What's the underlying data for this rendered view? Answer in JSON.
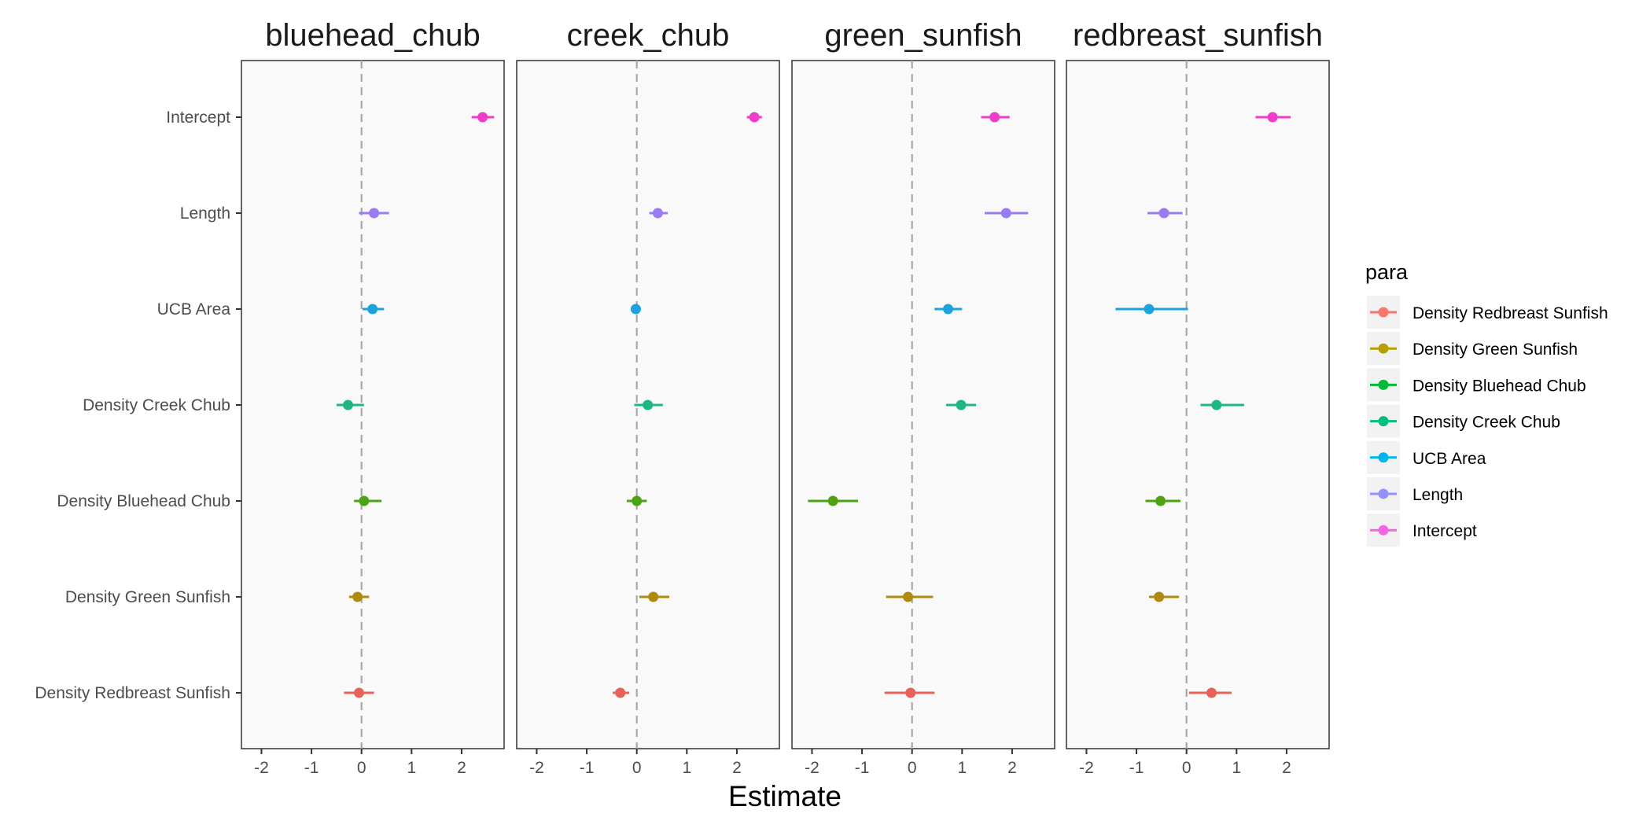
{
  "chart_data": {
    "type": "scatter",
    "subtype": "coefficient-plot-faceted",
    "xlabel": "Estimate",
    "xlim": [
      -2.4,
      2.85
    ],
    "xticks": [
      -2,
      -1,
      0,
      1,
      2
    ],
    "reference_line": {
      "x": 0,
      "style": "dashed"
    },
    "panel_background": "#f9f9f9",
    "grid": false,
    "y_categories": [
      "Intercept",
      "Length",
      "UCB Area",
      "Density Creek Chub",
      "Density Bluehead Chub",
      "Density Green Sunfish",
      "Density Redbreast Sunfish"
    ],
    "legend": {
      "title": "para",
      "position": "right",
      "entries": [
        {
          "label": "Density Redbreast Sunfish",
          "color": "#F8766D"
        },
        {
          "label": "Density Green Sunfish",
          "color": "#B79F00"
        },
        {
          "label": "Density Bluehead Chub",
          "color": "#00BA38"
        },
        {
          "label": "Density Creek Chub",
          "color": "#00BF7D"
        },
        {
          "label": "UCB Area",
          "color": "#00B4EF"
        },
        {
          "label": "Length",
          "color": "#9590FF"
        },
        {
          "label": "Intercept",
          "color": "#F564E3"
        }
      ]
    },
    "series_colors": {
      "Density Redbreast Sunfish": "#E8625C",
      "Density Green Sunfish": "#B08A0E",
      "Density Bluehead Chub": "#4CA414",
      "Density Creek Chub": "#1EB682",
      "UCB Area": "#1CA3DE",
      "Length": "#9A7CF2",
      "Intercept": "#EE3DCB"
    },
    "panels": [
      {
        "name": "bluehead_chub",
        "points": [
          {
            "param": "Intercept",
            "estimate": 2.42,
            "lower": 2.2,
            "upper": 2.65
          },
          {
            "param": "Length",
            "estimate": 0.25,
            "lower": -0.05,
            "upper": 0.55
          },
          {
            "param": "UCB Area",
            "estimate": 0.22,
            "lower": 0.02,
            "upper": 0.45
          },
          {
            "param": "Density Creek Chub",
            "estimate": -0.27,
            "lower": -0.5,
            "upper": 0.05
          },
          {
            "param": "Density Bluehead Chub",
            "estimate": 0.05,
            "lower": -0.15,
            "upper": 0.4
          },
          {
            "param": "Density Green Sunfish",
            "estimate": -0.08,
            "lower": -0.25,
            "upper": 0.15
          },
          {
            "param": "Density Redbreast Sunfish",
            "estimate": -0.05,
            "lower": -0.35,
            "upper": 0.25
          }
        ]
      },
      {
        "name": "creek_chub",
        "points": [
          {
            "param": "Intercept",
            "estimate": 2.35,
            "lower": 2.2,
            "upper": 2.5
          },
          {
            "param": "Length",
            "estimate": 0.42,
            "lower": 0.25,
            "upper": 0.62
          },
          {
            "param": "UCB Area",
            "estimate": -0.02,
            "lower": -0.1,
            "upper": 0.08
          },
          {
            "param": "Density Creek Chub",
            "estimate": 0.22,
            "lower": -0.05,
            "upper": 0.52
          },
          {
            "param": "Density Bluehead Chub",
            "estimate": 0.0,
            "lower": -0.2,
            "upper": 0.2
          },
          {
            "param": "Density Green Sunfish",
            "estimate": 0.33,
            "lower": 0.05,
            "upper": 0.65
          },
          {
            "param": "Density Redbreast Sunfish",
            "estimate": -0.33,
            "lower": -0.48,
            "upper": -0.15
          }
        ]
      },
      {
        "name": "green_sunfish",
        "points": [
          {
            "param": "Intercept",
            "estimate": 1.65,
            "lower": 1.38,
            "upper": 1.95
          },
          {
            "param": "Length",
            "estimate": 1.88,
            "lower": 1.45,
            "upper": 2.32
          },
          {
            "param": "UCB Area",
            "estimate": 0.72,
            "lower": 0.45,
            "upper": 1.0
          },
          {
            "param": "Density Creek Chub",
            "estimate": 0.98,
            "lower": 0.68,
            "upper": 1.28
          },
          {
            "param": "Density Bluehead Chub",
            "estimate": -1.58,
            "lower": -2.08,
            "upper": -1.08
          },
          {
            "param": "Density Green Sunfish",
            "estimate": -0.08,
            "lower": -0.52,
            "upper": 0.42
          },
          {
            "param": "Density Redbreast Sunfish",
            "estimate": -0.03,
            "lower": -0.55,
            "upper": 0.45
          }
        ]
      },
      {
        "name": "redbreast_sunfish",
        "points": [
          {
            "param": "Intercept",
            "estimate": 1.72,
            "lower": 1.38,
            "upper": 2.08
          },
          {
            "param": "Length",
            "estimate": -0.45,
            "lower": -0.78,
            "upper": -0.08
          },
          {
            "param": "UCB Area",
            "estimate": -0.75,
            "lower": -1.42,
            "upper": 0.03
          },
          {
            "param": "Density Creek Chub",
            "estimate": 0.6,
            "lower": 0.28,
            "upper": 1.15
          },
          {
            "param": "Density Bluehead Chub",
            "estimate": -0.52,
            "lower": -0.82,
            "upper": -0.12
          },
          {
            "param": "Density Green Sunfish",
            "estimate": -0.55,
            "lower": -0.75,
            "upper": -0.15
          },
          {
            "param": "Density Redbreast Sunfish",
            "estimate": 0.5,
            "lower": 0.05,
            "upper": 0.9
          }
        ]
      }
    ]
  }
}
